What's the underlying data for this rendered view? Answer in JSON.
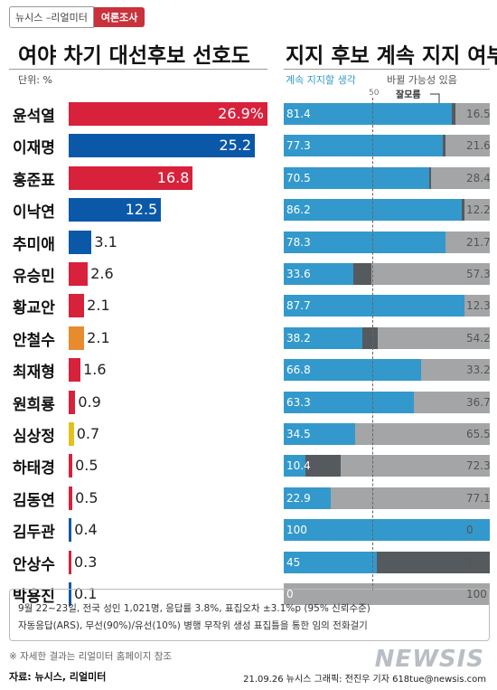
{
  "header": {
    "source_label": "뉴시스 –리얼미터",
    "tag_label": "여론조사"
  },
  "colors": {
    "red": "#d8213b",
    "blue": "#0b58a8",
    "orange": "#e88b2e",
    "yellow": "#e3c21b",
    "continue_blue": "#3399cc",
    "unknown_dark": "#555a5e",
    "change_gray": "#a3a5a7"
  },
  "chart_data": [
    {
      "type": "bar",
      "title": "여야 차기 대선후보 선호도",
      "unit_label": "단위: %",
      "categories": [
        "윤석열",
        "이재명",
        "홍준표",
        "이낙연",
        "추미애",
        "유승민",
        "황교안",
        "안철수",
        "최재형",
        "원희룡",
        "심상정",
        "하태경",
        "김동연",
        "김두관",
        "안상수",
        "박용진"
      ],
      "value_labels": [
        "26.9%",
        "25.2",
        "16.8",
        "12.5",
        "3.1",
        "2.6",
        "2.1",
        "2.1",
        "1.6",
        "0.9",
        "0.7",
        "0.5",
        "0.5",
        "0.4",
        "0.3",
        "0.1"
      ],
      "values": [
        26.9,
        25.2,
        16.8,
        12.5,
        3.1,
        2.6,
        2.1,
        2.1,
        1.6,
        0.9,
        0.7,
        0.5,
        0.5,
        0.4,
        0.3,
        0.1
      ],
      "bar_colors": [
        "red",
        "blue",
        "red",
        "blue",
        "blue",
        "red",
        "red",
        "orange",
        "red",
        "red",
        "yellow",
        "red",
        "red",
        "blue",
        "red",
        "blue"
      ],
      "xlim": [
        0,
        26.9
      ]
    },
    {
      "type": "bar",
      "stacked": true,
      "orientation": "horizontal",
      "title": "지지 후보 계속 지지 여부",
      "categories": [
        "윤석열",
        "이재명",
        "홍준표",
        "이낙연",
        "추미애",
        "유승민",
        "황교안",
        "안철수",
        "최재형",
        "원희룡",
        "심상정",
        "하태경",
        "김동연",
        "김두관",
        "안상수",
        "박용진"
      ],
      "reference_line": "50",
      "series": [
        {
          "name": "계속 지지할 생각",
          "color": "continue_blue",
          "values": [
            81.4,
            77.3,
            70.5,
            86.2,
            78.3,
            33.6,
            87.7,
            38.2,
            66.8,
            63.3,
            34.5,
            10.4,
            22.9,
            100,
            45,
            0
          ]
        },
        {
          "name": "잘모름",
          "color": "unknown_dark",
          "values": [
            2.1,
            1.1,
            1.1,
            1.6,
            0,
            9.1,
            0,
            7.6,
            0,
            0,
            0,
            17.3,
            0,
            0,
            55,
            0
          ]
        },
        {
          "name": "바뀔 가능성 있음",
          "color": "change_gray",
          "values": [
            16.5,
            21.6,
            28.4,
            12.2,
            21.7,
            57.3,
            12.3,
            54.2,
            33.2,
            36.7,
            65.5,
            72.3,
            77.1,
            0,
            0,
            100
          ]
        }
      ],
      "xlim": [
        0,
        100
      ]
    }
  ],
  "notes": {
    "line1": "9월 22~23일, 전국 성인 1,021명, 응답률 3.8%, 표집오차 ±3.1%p (95% 신뢰수준)",
    "line2": "자동응답(ARS), 무선(90%)/유선(10%) 병행   무작위 생성 표집틀을 통한 임의 전화걸기",
    "line3": "※ 자세한 결과는 리얼미터 홈페이지 참조"
  },
  "footer": {
    "source": "자료: 뉴시스, 리얼미터",
    "credit": "21.09.26 뉴시스 그래픽: 전진우 기자 618tue@newsis.com",
    "logo": "NEWSIS"
  }
}
